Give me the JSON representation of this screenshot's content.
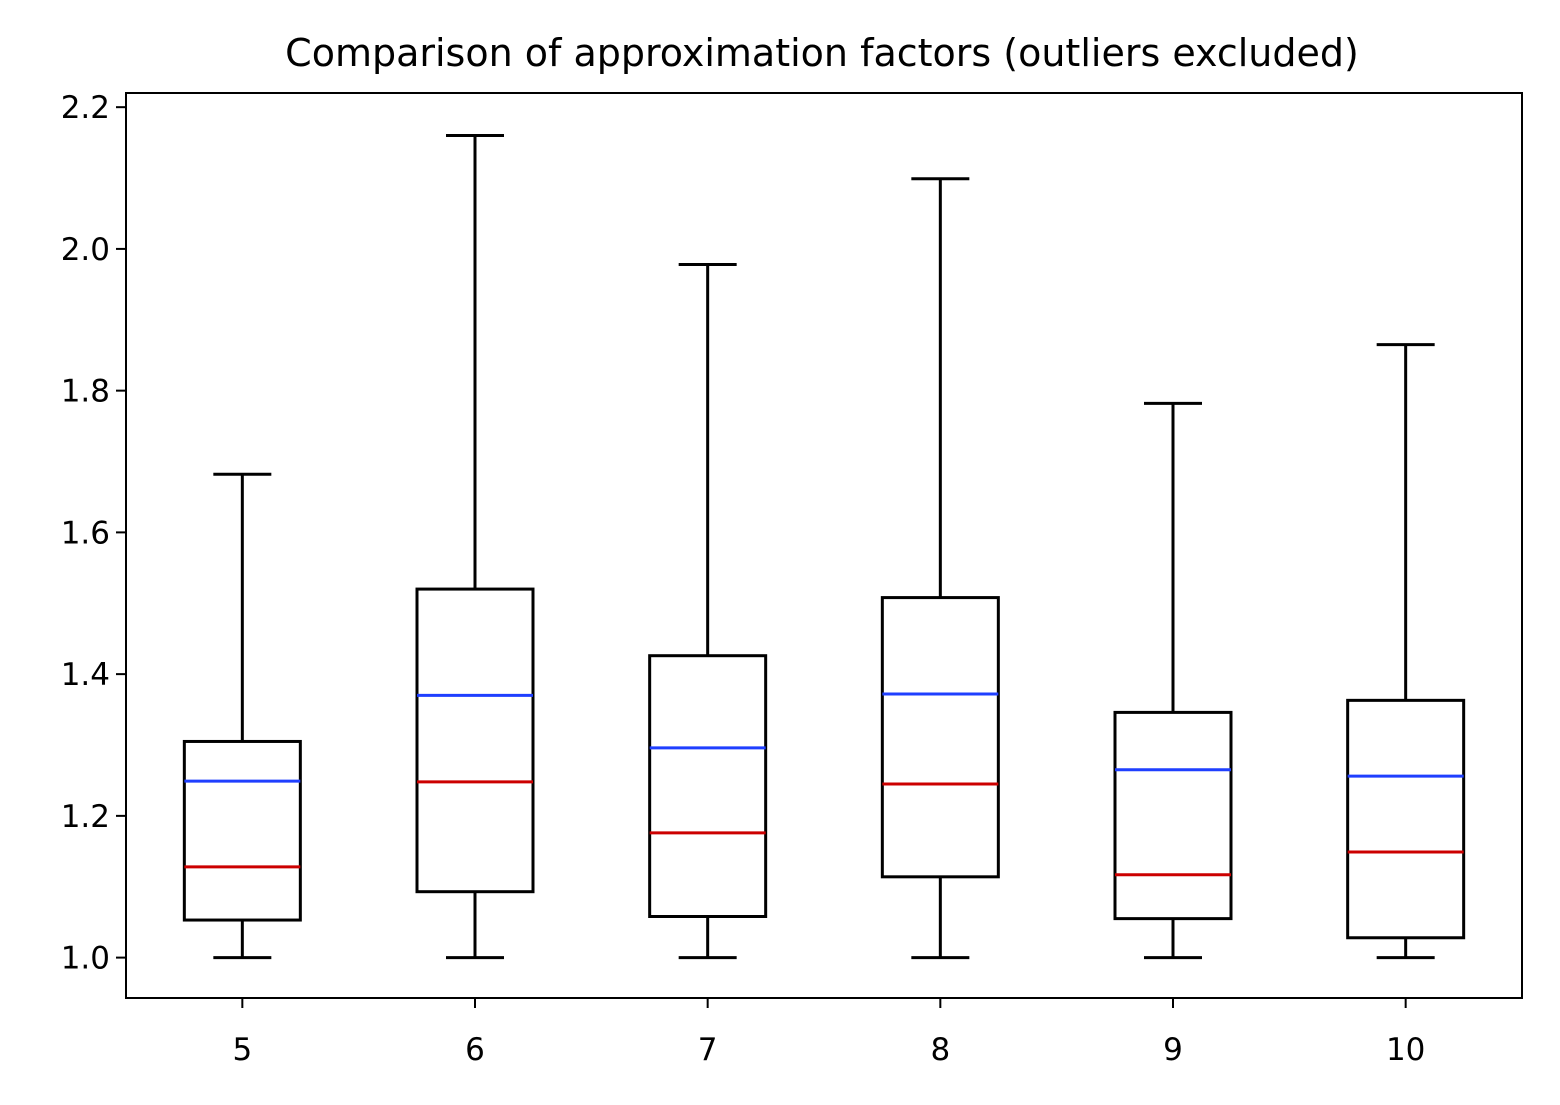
{
  "chart_data": {
    "type": "box",
    "title": "Comparison of approximation factors (outliers excluded)",
    "xlabel": "",
    "ylabel": "",
    "categories": [
      "5",
      "6",
      "7",
      "8",
      "9",
      "10"
    ],
    "ylim": [
      0.943,
      2.22
    ],
    "y_ticks": [
      1.0,
      1.2,
      1.4,
      1.6,
      1.8,
      2.0,
      2.2
    ],
    "y_tick_labels": [
      "1.0",
      "1.2",
      "1.4",
      "1.6",
      "1.8",
      "2.0",
      "2.2"
    ],
    "grid": false,
    "legend": "none",
    "boxes": [
      {
        "label": "5",
        "whisker_low": 1.0,
        "q1": 1.053,
        "median": 1.128,
        "mean": 1.249,
        "q3": 1.305,
        "whisker_high": 1.682
      },
      {
        "label": "6",
        "whisker_low": 1.0,
        "q1": 1.093,
        "median": 1.248,
        "mean": 1.37,
        "q3": 1.52,
        "whisker_high": 2.16
      },
      {
        "label": "7",
        "whisker_low": 1.0,
        "q1": 1.058,
        "median": 1.176,
        "mean": 1.296,
        "q3": 1.426,
        "whisker_high": 1.978
      },
      {
        "label": "8",
        "whisker_low": 1.0,
        "q1": 1.114,
        "median": 1.245,
        "mean": 1.372,
        "q3": 1.508,
        "whisker_high": 2.099
      },
      {
        "label": "9",
        "whisker_low": 1.0,
        "q1": 1.055,
        "median": 1.117,
        "mean": 1.265,
        "q3": 1.346,
        "whisker_high": 1.782
      },
      {
        "label": "10",
        "whisker_low": 1.0,
        "q1": 1.028,
        "median": 1.149,
        "mean": 1.256,
        "q3": 1.363,
        "whisker_high": 1.865
      }
    ],
    "colors": {
      "box": "#000000",
      "whisker": "#000000",
      "median": "#cc0000",
      "mean": "#1f3fff",
      "background": "#ffffff"
    }
  }
}
